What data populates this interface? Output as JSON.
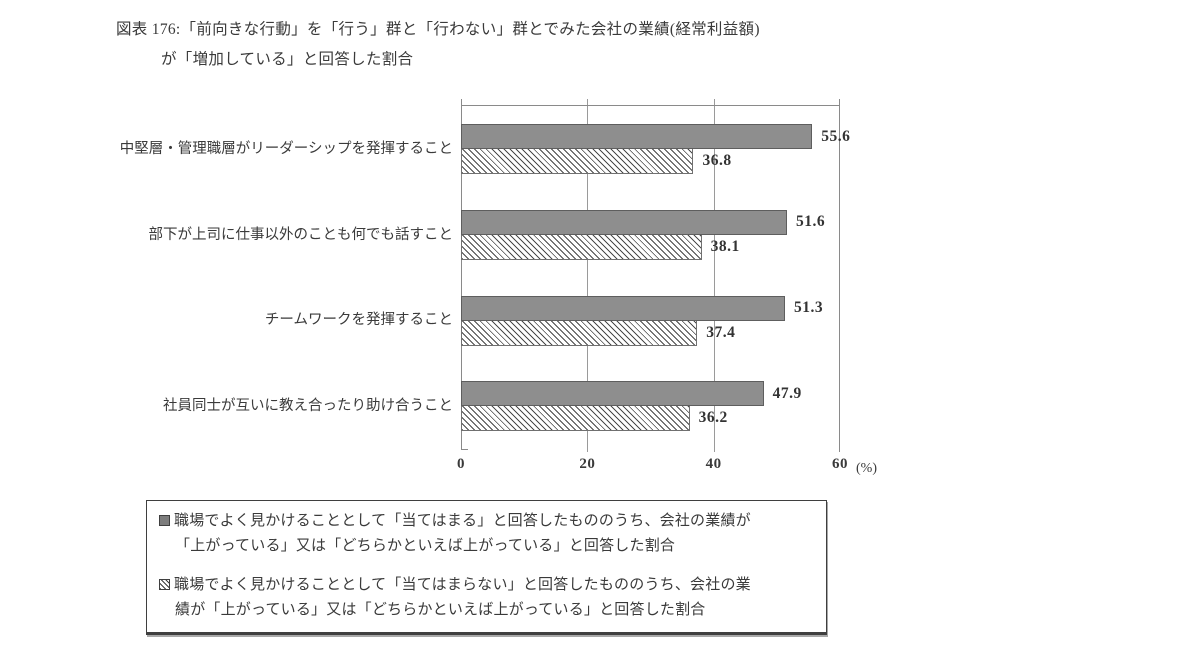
{
  "title": {
    "line1": "図表 176:「前向きな行動」を「行う」群と「行わない」群とでみた会社の業績(経常利益額)",
    "line2": "が「増加している」と回答した割合"
  },
  "chart_data": {
    "type": "bar",
    "orientation": "horizontal",
    "categories": [
      "中堅層・管理職層がリーダーシップを発揮すること",
      "部下が上司に仕事以外のことも何でも話すこと",
      "チームワークを発揮すること",
      "社員同士が互いに教え合ったり助け合うこと"
    ],
    "series": [
      {
        "name": "職場でよく見かけることとして「当てはまる」と回答したもののうち、会社の業績が「上がっている」又は「どちらかといえば上がっている」と回答した割合",
        "pattern": "solid",
        "values": [
          55.6,
          51.6,
          51.3,
          47.9
        ]
      },
      {
        "name": "職場でよく見かけることとして「当てはまらない」と回答したもののうち、会社の業績が「上がっている」又は「どちらかといえば上がっている」と回答した割合",
        "pattern": "hatched",
        "values": [
          36.8,
          38.1,
          37.4,
          36.2
        ]
      }
    ],
    "xlim": [
      0,
      60
    ],
    "xticks": [
      "0",
      "20",
      "40",
      "60"
    ],
    "x_unit": "(%)",
    "grid": true,
    "legend_position": "bottom",
    "colors": {
      "solid_bar": "#8e8e8e",
      "bar_border": "#5e5e5e",
      "hatch_line": "#4a4a4a",
      "axis": "#8a8a8a",
      "text": "#3a3a3a"
    }
  },
  "legend": {
    "items": [
      {
        "marker": "solid-square-icon",
        "line1": "職場でよく見かけることとして「当てはまる」と回答したもののうち、会社の業績が",
        "line2": "「上がっている」又は「どちらかといえば上がっている」と回答した割合"
      },
      {
        "marker": "hatched-square-icon",
        "line1": "職場でよく見かけることとして「当てはまらない」と回答したもののうち、会社の業",
        "line2": "績が「上がっている」又は「どちらかといえば上がっている」と回答した割合"
      }
    ]
  }
}
